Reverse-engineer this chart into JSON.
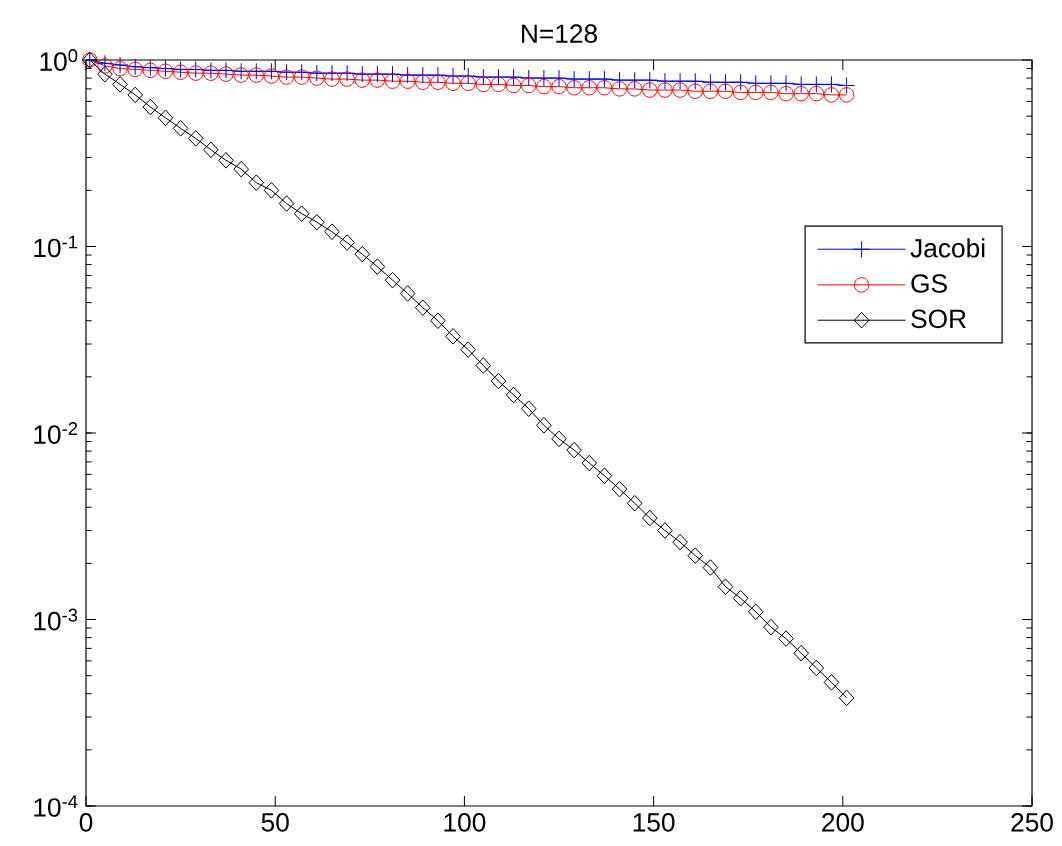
{
  "chart_data": {
    "type": "line",
    "title": "N=128",
    "x": [
      1,
      5,
      9,
      13,
      17,
      21,
      25,
      29,
      33,
      37,
      41,
      45,
      49,
      53,
      57,
      61,
      65,
      69,
      73,
      77,
      81,
      85,
      89,
      93,
      97,
      101,
      105,
      109,
      113,
      117,
      121,
      125,
      129,
      133,
      137,
      141,
      145,
      149,
      153,
      157,
      161,
      165,
      169,
      173,
      177,
      181,
      185,
      189,
      193,
      197,
      201
    ],
    "series": [
      {
        "name": "Jacobi",
        "color": "#0000ff",
        "marker": "cross",
        "values": [
          1.0,
          0.96,
          0.94,
          0.92,
          0.91,
          0.9,
          0.89,
          0.89,
          0.88,
          0.88,
          0.87,
          0.87,
          0.87,
          0.86,
          0.86,
          0.85,
          0.85,
          0.85,
          0.84,
          0.84,
          0.84,
          0.83,
          0.83,
          0.83,
          0.82,
          0.82,
          0.81,
          0.81,
          0.81,
          0.8,
          0.8,
          0.8,
          0.79,
          0.79,
          0.79,
          0.78,
          0.78,
          0.78,
          0.77,
          0.77,
          0.77,
          0.76,
          0.76,
          0.76,
          0.75,
          0.75,
          0.75,
          0.74,
          0.74,
          0.74,
          0.73
        ]
      },
      {
        "name": "GS",
        "color": "#ff0000",
        "marker": "circle",
        "values": [
          1.0,
          0.93,
          0.9,
          0.89,
          0.88,
          0.87,
          0.86,
          0.85,
          0.85,
          0.84,
          0.83,
          0.83,
          0.82,
          0.81,
          0.81,
          0.8,
          0.79,
          0.79,
          0.78,
          0.78,
          0.77,
          0.77,
          0.76,
          0.76,
          0.75,
          0.75,
          0.74,
          0.74,
          0.73,
          0.73,
          0.72,
          0.72,
          0.71,
          0.71,
          0.71,
          0.7,
          0.7,
          0.69,
          0.69,
          0.69,
          0.68,
          0.68,
          0.68,
          0.67,
          0.67,
          0.67,
          0.66,
          0.66,
          0.66,
          0.65,
          0.65
        ]
      },
      {
        "name": "SOR",
        "color": "#000000",
        "marker": "diamond",
        "values": [
          1.0,
          0.84,
          0.74,
          0.65,
          0.56,
          0.49,
          0.43,
          0.38,
          0.33,
          0.29,
          0.26,
          0.22,
          0.2,
          0.17,
          0.15,
          0.135,
          0.12,
          0.105,
          0.091,
          0.078,
          0.066,
          0.056,
          0.047,
          0.04,
          0.033,
          0.028,
          0.023,
          0.019,
          0.016,
          0.0135,
          0.011,
          0.0093,
          0.0081,
          0.0069,
          0.0059,
          0.005,
          0.0042,
          0.0035,
          0.003,
          0.0026,
          0.0022,
          0.0019,
          0.0015,
          0.0013,
          0.0011,
          0.00091,
          0.00079,
          0.00066,
          0.00055,
          0.00046,
          0.00038
        ]
      }
    ],
    "xlim": [
      0,
      250
    ],
    "xticks": [
      0,
      50,
      100,
      150,
      200,
      250
    ],
    "ylim": [
      0.0001,
      1
    ],
    "yticks": [
      {
        "value": 0.0001,
        "label": "10$^{-4}$"
      },
      {
        "value": 0.001,
        "label": "10$^{-3}$"
      },
      {
        "value": 0.01,
        "label": "10$^{-2}$"
      },
      {
        "value": 0.1,
        "label": "10$^{-1}$"
      },
      {
        "value": 1,
        "label": "10$^{0}$"
      }
    ],
    "log": "y",
    "legend": "top right",
    "line_style": "solid"
  }
}
